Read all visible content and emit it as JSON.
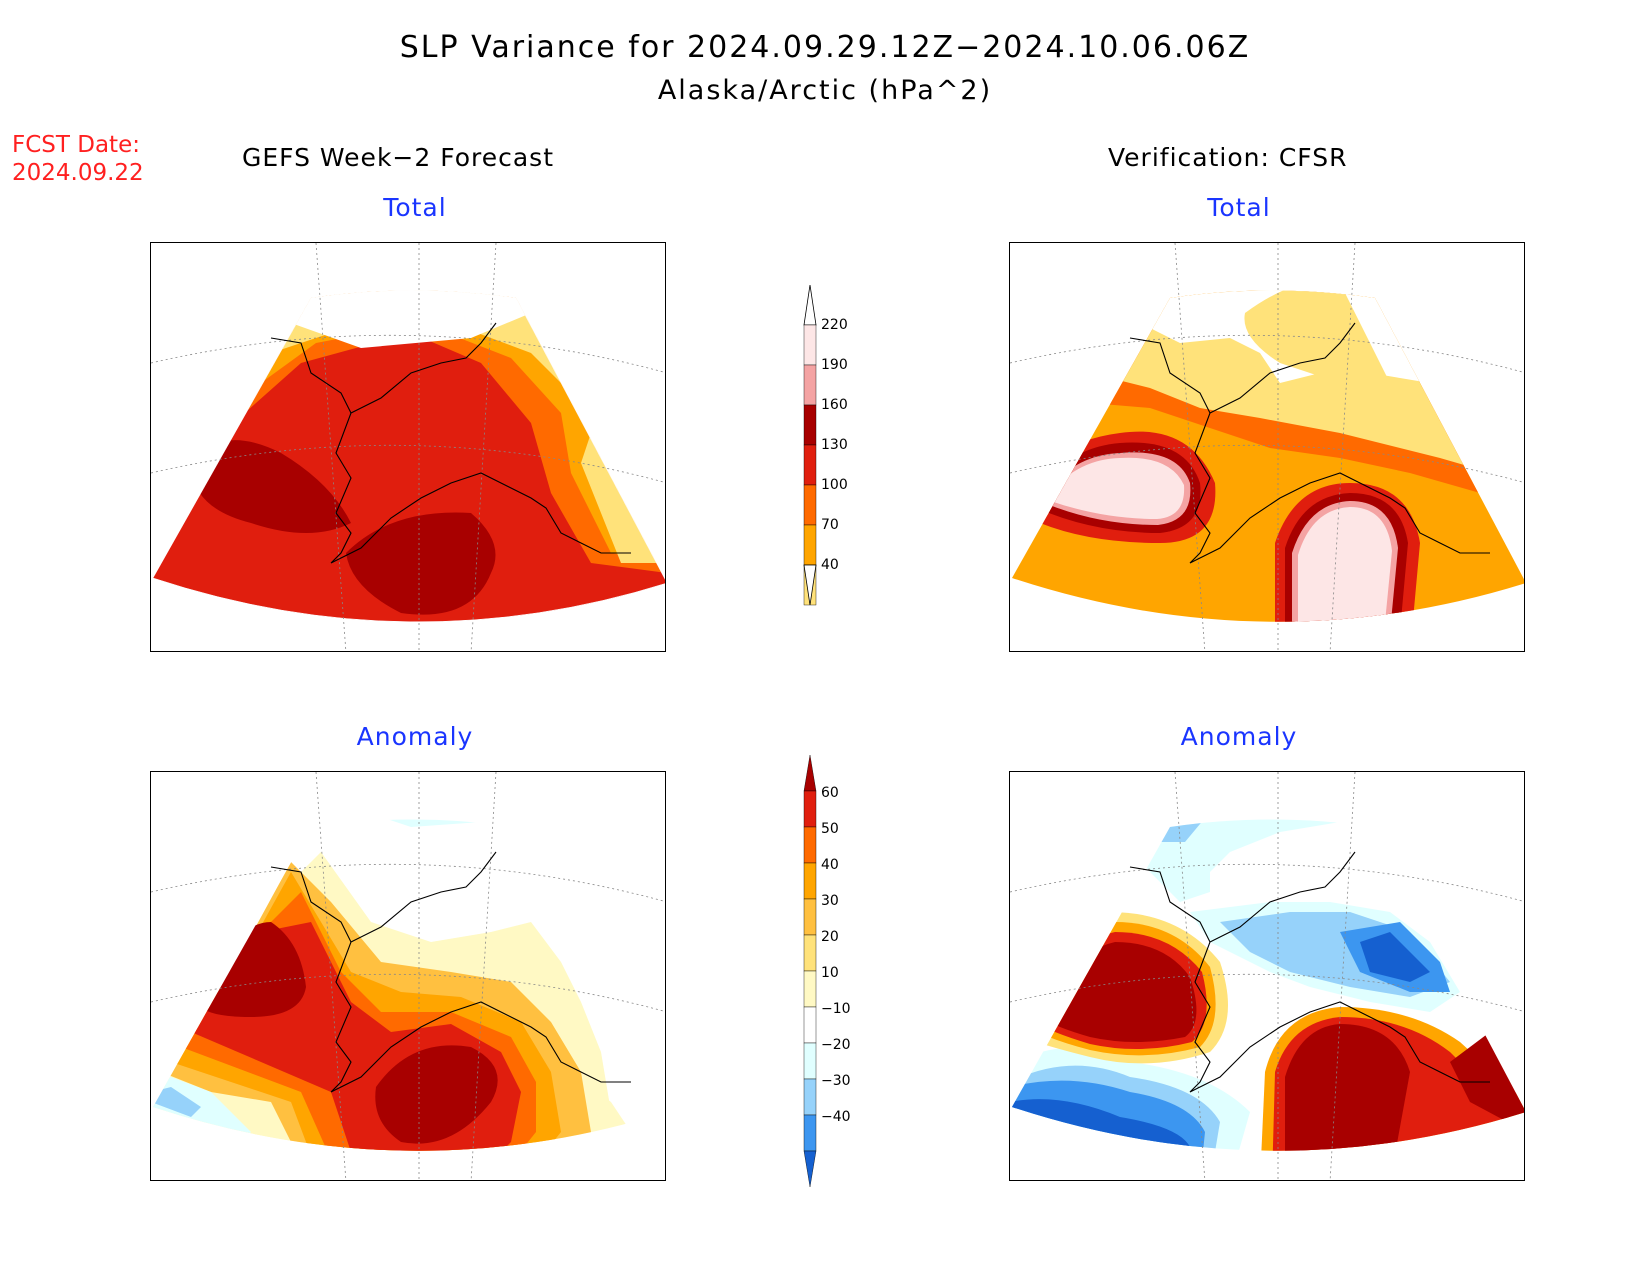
{
  "header": {
    "title": "SLP Variance for 2024.09.29.12Z−2024.10.06.06Z",
    "subtitle": "Alaska/Arctic (hPa^2)",
    "fcst_label": "FCST Date:",
    "fcst_date": "2024.09.22"
  },
  "columns": {
    "left": "GEFS Week−2 Forecast",
    "right": "Verification: CFSR"
  },
  "panels": {
    "total_left": "Total",
    "total_right": "Total",
    "anom_left": "Anomaly",
    "anom_right": "Anomaly"
  },
  "colorbars": {
    "total": {
      "labels": [
        "220",
        "190",
        "160",
        "130",
        "100",
        "70",
        "40"
      ],
      "colors": [
        "#fde6e6",
        "#f4a3a3",
        "#a80000",
        "#e01e0e",
        "#ff6a00",
        "#ffa500",
        "#ffe27a"
      ]
    },
    "anomaly": {
      "labels": [
        "60",
        "50",
        "40",
        "30",
        "20",
        "10",
        "−10",
        "−20",
        "−30",
        "−40"
      ],
      "colors": [
        "#a80000",
        "#e01e0e",
        "#ff6a00",
        "#ffa500",
        "#ffc040",
        "#ffe27a",
        "#fff9c4",
        "#ffffff",
        "#e0ffff",
        "#96d2fa",
        "#3c96f0",
        "#1560d0"
      ]
    }
  }
}
